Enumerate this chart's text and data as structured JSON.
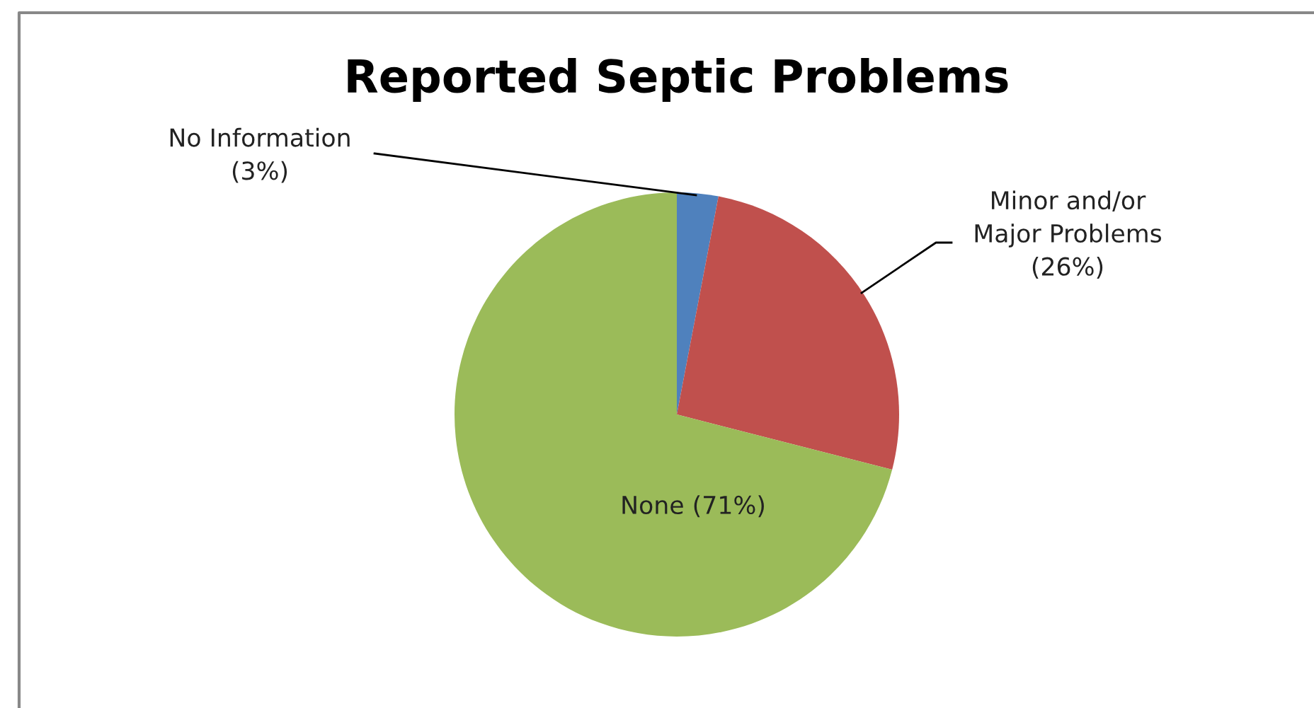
{
  "chart_data": {
    "type": "pie",
    "title": "Reported Septic Problems",
    "categories": [
      "No Information",
      "Minor and/or\nMajor Problems",
      "None"
    ],
    "values": [
      3,
      26,
      71
    ],
    "colors": [
      "#4f81bd",
      "#c0504d",
      "#9bbb59"
    ],
    "value_labels": [
      "(3%)",
      "(26%)",
      "(71%)"
    ],
    "legend": false
  }
}
